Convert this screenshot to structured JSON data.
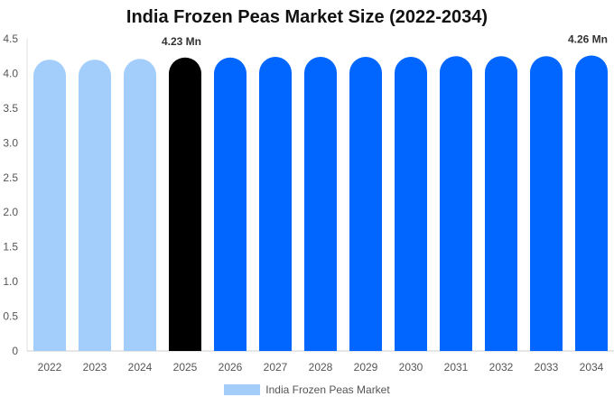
{
  "chart_data": {
    "type": "bar",
    "title": "India Frozen Peas Market Size (2022-2034)",
    "categories": [
      "2022",
      "2023",
      "2024",
      "2025",
      "2026",
      "2027",
      "2028",
      "2029",
      "2030",
      "2031",
      "2032",
      "2033",
      "2034"
    ],
    "series": [
      {
        "name": "India Frozen Peas Market",
        "values": [
          4.2,
          4.2,
          4.21,
          4.23,
          4.23,
          4.24,
          4.24,
          4.24,
          4.24,
          4.25,
          4.25,
          4.25,
          4.26
        ]
      }
    ],
    "ylim": [
      0,
      4.5
    ],
    "yticks": [
      "0",
      "0.5",
      "1.0",
      "1.5",
      "2.0",
      "2.5",
      "3.0",
      "3.5",
      "4.0",
      "4.5"
    ],
    "grid": false,
    "legend_position": "bottom",
    "data_labels": [
      {
        "category": "2025",
        "text": "4.23 Mn"
      },
      {
        "category": "2034",
        "text": "4.26 Mn"
      }
    ],
    "colors": {
      "historical": "#a3cdfa",
      "current": "#000000",
      "forecast": "#0066ff"
    }
  }
}
